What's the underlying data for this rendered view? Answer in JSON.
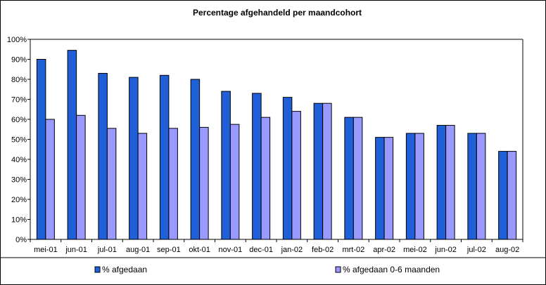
{
  "chart_data": {
    "type": "bar",
    "title": "Percentage afgehandeld per maandcohort",
    "xlabel": "",
    "ylabel": "",
    "ylim": [
      0,
      100
    ],
    "y_tick_labels": [
      "0%",
      "10%",
      "20%",
      "30%",
      "40%",
      "50%",
      "60%",
      "70%",
      "80%",
      "90%",
      "100%"
    ],
    "grid": false,
    "legend_position": "bottom",
    "categories": [
      "mei-01",
      "jun-01",
      "jul-01",
      "aug-01",
      "sep-01",
      "okt-01",
      "nov-01",
      "dec-01",
      "jan-02",
      "feb-02",
      "mrt-02",
      "apr-02",
      "mei-02",
      "jun-02",
      "jul-02",
      "aug-02"
    ],
    "series": [
      {
        "name": "% afgedaan",
        "color": "#1F5FD8",
        "values": [
          90,
          94.5,
          83,
          81,
          82,
          80,
          74,
          73,
          71,
          68,
          61,
          51,
          53,
          57,
          53,
          44
        ]
      },
      {
        "name": "% afgedaan 0-6 maanden",
        "color": "#9999FF",
        "values": [
          60,
          62,
          55.5,
          53,
          55.5,
          56,
          57.5,
          61,
          64,
          68,
          61,
          51,
          53,
          57,
          53,
          44
        ]
      }
    ]
  }
}
